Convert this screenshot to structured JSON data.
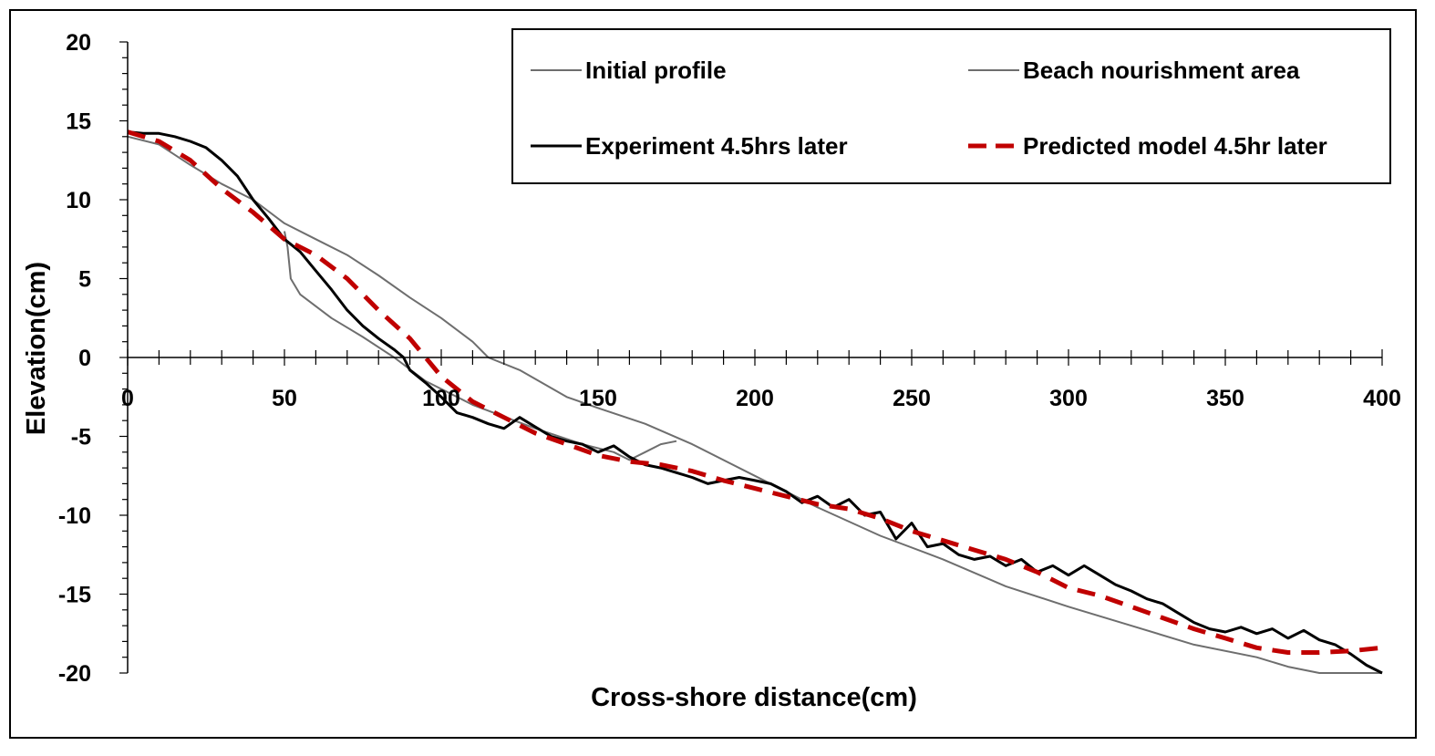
{
  "chart_data": {
    "type": "line",
    "title": "",
    "xlabel": "Cross-shore distance(cm)",
    "ylabel": "Elevation(cm)",
    "xlim": [
      0,
      400
    ],
    "ylim": [
      -20,
      20
    ],
    "x_ticks": [
      "0",
      "50",
      "100",
      "150",
      "200",
      "250",
      "300",
      "350",
      "400"
    ],
    "y_ticks": [
      "20",
      "15",
      "10",
      "5",
      "0",
      "-5",
      "-10",
      "-15",
      "-20"
    ],
    "grid": false,
    "legend_position": "top-right",
    "series": [
      {
        "name": "Initial profile",
        "color": "#6e6e6e",
        "style": "solid",
        "points": [
          [
            0,
            14
          ],
          [
            10,
            13.5
          ],
          [
            20,
            12.2
          ],
          [
            30,
            11
          ],
          [
            40,
            10
          ],
          [
            50,
            8.5
          ],
          [
            60,
            7.5
          ],
          [
            70,
            6.5
          ],
          [
            80,
            5.2
          ],
          [
            90,
            3.8
          ],
          [
            100,
            2.5
          ],
          [
            110,
            1
          ],
          [
            115,
            0
          ],
          [
            125,
            -0.8
          ],
          [
            140,
            -2.5
          ],
          [
            150,
            -3.2
          ],
          [
            165,
            -4.2
          ],
          [
            180,
            -5.5
          ],
          [
            200,
            -7.5
          ],
          [
            220,
            -9.5
          ],
          [
            240,
            -11.3
          ],
          [
            260,
            -12.8
          ],
          [
            280,
            -14.5
          ],
          [
            300,
            -15.8
          ],
          [
            320,
            -17
          ],
          [
            340,
            -18.2
          ],
          [
            360,
            -19
          ],
          [
            370,
            -19.6
          ],
          [
            380,
            -20
          ],
          [
            400,
            -20
          ]
        ]
      },
      {
        "name": "Beach nourishment area",
        "color": "#6e6e6e",
        "style": "solid",
        "points": [
          [
            50,
            8
          ],
          [
            51,
            7
          ],
          [
            52,
            5
          ],
          [
            55,
            4
          ],
          [
            65,
            2.5
          ],
          [
            75,
            1.3
          ],
          [
            85,
            0
          ],
          [
            95,
            -1.5
          ],
          [
            110,
            -3
          ],
          [
            130,
            -4.5
          ],
          [
            145,
            -5.5
          ],
          [
            155,
            -6
          ],
          [
            160,
            -6.5
          ],
          [
            165,
            -6
          ],
          [
            170,
            -5.5
          ],
          [
            175,
            -5.3
          ]
        ]
      },
      {
        "name": "Experiment 4.5hrs later",
        "color": "#000000",
        "style": "solid",
        "points": [
          [
            0,
            14.3
          ],
          [
            5,
            14.2
          ],
          [
            10,
            14.2
          ],
          [
            15,
            14
          ],
          [
            20,
            13.7
          ],
          [
            25,
            13.3
          ],
          [
            30,
            12.5
          ],
          [
            35,
            11.5
          ],
          [
            40,
            10
          ],
          [
            45,
            8.8
          ],
          [
            50,
            7.5
          ],
          [
            55,
            6.7
          ],
          [
            60,
            5.5
          ],
          [
            65,
            4.3
          ],
          [
            70,
            3
          ],
          [
            75,
            2
          ],
          [
            80,
            1.2
          ],
          [
            85,
            0.5
          ],
          [
            88,
            0
          ],
          [
            90,
            -0.8
          ],
          [
            95,
            -1.6
          ],
          [
            100,
            -2.5
          ],
          [
            105,
            -3.5
          ],
          [
            110,
            -3.8
          ],
          [
            115,
            -4.2
          ],
          [
            120,
            -4.5
          ],
          [
            125,
            -3.8
          ],
          [
            130,
            -4.4
          ],
          [
            135,
            -5
          ],
          [
            140,
            -5.3
          ],
          [
            145,
            -5.5
          ],
          [
            150,
            -6
          ],
          [
            155,
            -5.6
          ],
          [
            160,
            -6.3
          ],
          [
            165,
            -6.8
          ],
          [
            170,
            -7
          ],
          [
            175,
            -7.3
          ],
          [
            180,
            -7.6
          ],
          [
            185,
            -8
          ],
          [
            190,
            -7.8
          ],
          [
            195,
            -7.6
          ],
          [
            200,
            -7.8
          ],
          [
            205,
            -8
          ],
          [
            210,
            -8.5
          ],
          [
            215,
            -9.2
          ],
          [
            220,
            -8.8
          ],
          [
            225,
            -9.5
          ],
          [
            230,
            -9
          ],
          [
            235,
            -10
          ],
          [
            240,
            -9.8
          ],
          [
            245,
            -11.5
          ],
          [
            250,
            -10.5
          ],
          [
            255,
            -12
          ],
          [
            260,
            -11.8
          ],
          [
            265,
            -12.5
          ],
          [
            270,
            -12.8
          ],
          [
            275,
            -12.6
          ],
          [
            280,
            -13.2
          ],
          [
            285,
            -12.8
          ],
          [
            290,
            -13.6
          ],
          [
            295,
            -13.2
          ],
          [
            300,
            -13.8
          ],
          [
            305,
            -13.2
          ],
          [
            310,
            -13.8
          ],
          [
            315,
            -14.4
          ],
          [
            320,
            -14.8
          ],
          [
            325,
            -15.3
          ],
          [
            330,
            -15.6
          ],
          [
            335,
            -16.2
          ],
          [
            340,
            -16.8
          ],
          [
            345,
            -17.2
          ],
          [
            350,
            -17.4
          ],
          [
            355,
            -17.1
          ],
          [
            360,
            -17.5
          ],
          [
            365,
            -17.2
          ],
          [
            370,
            -17.8
          ],
          [
            375,
            -17.3
          ],
          [
            380,
            -17.9
          ],
          [
            385,
            -18.2
          ],
          [
            390,
            -18.8
          ],
          [
            395,
            -19.5
          ],
          [
            400,
            -20
          ]
        ]
      },
      {
        "name": "Predicted model 4.5hr later",
        "color": "#c00000",
        "style": "dashed",
        "points": [
          [
            0,
            14.3
          ],
          [
            10,
            13.7
          ],
          [
            20,
            12.5
          ],
          [
            30,
            10.7
          ],
          [
            40,
            9.2
          ],
          [
            50,
            7.5
          ],
          [
            60,
            6.5
          ],
          [
            70,
            5
          ],
          [
            80,
            3
          ],
          [
            90,
            1.2
          ],
          [
            95,
            0
          ],
          [
            100,
            -1.2
          ],
          [
            110,
            -2.8
          ],
          [
            120,
            -3.8
          ],
          [
            130,
            -4.8
          ],
          [
            140,
            -5.5
          ],
          [
            150,
            -6.2
          ],
          [
            160,
            -6.6
          ],
          [
            170,
            -6.8
          ],
          [
            180,
            -7.2
          ],
          [
            190,
            -7.8
          ],
          [
            200,
            -8.3
          ],
          [
            210,
            -8.8
          ],
          [
            220,
            -9.3
          ],
          [
            230,
            -9.6
          ],
          [
            240,
            -10.2
          ],
          [
            250,
            -11
          ],
          [
            260,
            -11.6
          ],
          [
            270,
            -12.2
          ],
          [
            280,
            -12.8
          ],
          [
            290,
            -13.6
          ],
          [
            300,
            -14.6
          ],
          [
            310,
            -15.1
          ],
          [
            320,
            -15.8
          ],
          [
            330,
            -16.5
          ],
          [
            340,
            -17.2
          ],
          [
            350,
            -17.8
          ],
          [
            360,
            -18.4
          ],
          [
            370,
            -18.7
          ],
          [
            380,
            -18.7
          ],
          [
            390,
            -18.6
          ],
          [
            400,
            -18.4
          ]
        ]
      }
    ]
  }
}
